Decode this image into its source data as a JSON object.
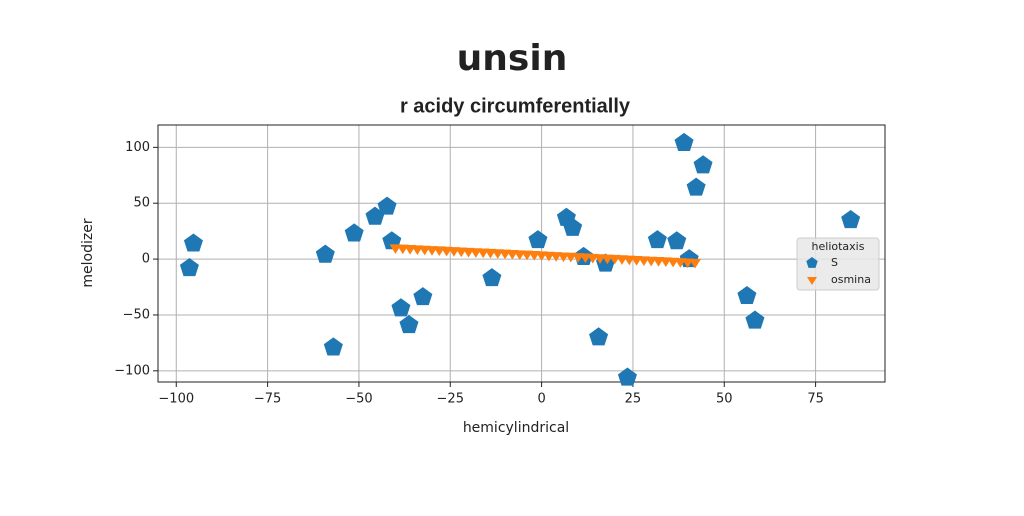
{
  "chart_data": {
    "type": "scatter",
    "title": "unsin",
    "subtitle": "r acidy circumferentially",
    "xlabel": "hemicylindrical",
    "ylabel": "melodizer",
    "legend_title": "heliotaxis",
    "legend_loc": "center right",
    "grid": true,
    "xlim": [
      -105,
      94
    ],
    "ylim": [
      -110,
      120
    ],
    "xticks": [
      {
        "value": -100,
        "label": "−100"
      },
      {
        "value": -75,
        "label": "−75"
      },
      {
        "value": -50,
        "label": "−50"
      },
      {
        "value": -25,
        "label": "−25"
      },
      0,
      25,
      50,
      75
    ],
    "yticks": [
      {
        "value": -100,
        "label": "−100"
      },
      {
        "value": -50,
        "label": "−50"
      },
      0,
      50,
      100
    ],
    "series": [
      {
        "name": "S",
        "color": "#1f77b4",
        "marker": "pentagon",
        "x": [
          -95.3,
          -96.4,
          -59.2,
          -57,
          -51.3,
          -45.6,
          -42.3,
          -41,
          -38.5,
          -36.3,
          -32.5,
          -13.6,
          -1,
          6.8,
          8.5,
          11.5,
          17.5,
          15.6,
          23.5,
          31.7,
          37,
          39,
          44.2,
          42.3,
          40.4,
          56.2,
          58.4,
          84.6
        ],
        "values": [
          14,
          -8,
          4,
          -79,
          23,
          38,
          47,
          16,
          -44,
          -59,
          -34,
          -17,
          17,
          37,
          28,
          2,
          -4,
          -70,
          -106,
          17,
          16,
          104,
          84,
          64,
          0,
          -33,
          -55,
          35
        ]
      },
      {
        "name": "osmina",
        "color": "#ff7f0e",
        "marker": "triangle_down",
        "x": [
          -40,
          -38,
          -36,
          -34,
          -32,
          -30,
          -28,
          -26,
          -24,
          -22,
          -20,
          -18,
          -16,
          -14,
          -12,
          -10,
          -8,
          -6,
          -4,
          -2,
          0,
          2,
          4,
          6,
          8,
          10,
          12,
          14,
          16,
          18,
          20,
          22,
          24,
          26,
          28,
          30,
          32,
          34,
          36,
          38,
          40,
          42
        ],
        "values": [
          10,
          9.7,
          9.4,
          9.0,
          8.7,
          8.4,
          8.1,
          7.8,
          7.5,
          7.1,
          6.8,
          6.5,
          6.2,
          5.9,
          5.6,
          5.2,
          4.9,
          4.6,
          4.3,
          4.0,
          3.7,
          3.3,
          3.0,
          2.7,
          2.4,
          2.1,
          1.8,
          1.4,
          1.1,
          0.8,
          0.5,
          0.2,
          -0.1,
          -0.5,
          -0.8,
          -1.1,
          -1.4,
          -1.7,
          -2.0,
          -2.4,
          -2.7,
          -3.0
        ]
      }
    ]
  }
}
